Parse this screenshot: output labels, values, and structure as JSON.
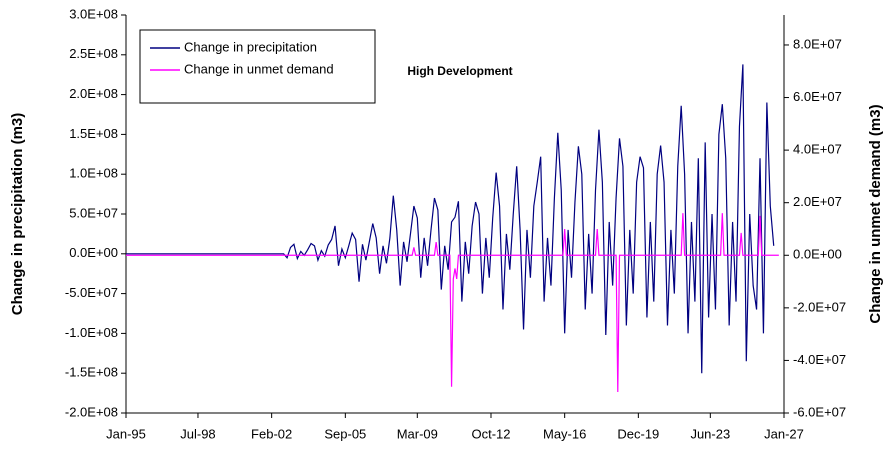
{
  "chart_data": {
    "type": "line",
    "annotation": "High Development",
    "ylabel": "Change in precipitation (m3)",
    "y2label": "Change in unmet demand (m3)",
    "xlim": [
      "1995-01",
      "2027-01"
    ],
    "xticks": [
      {
        "value": "1995-01",
        "label": "Jan-95"
      },
      {
        "value": "1998-07",
        "label": "Jul-98"
      },
      {
        "value": "2002-02",
        "label": "Feb-02"
      },
      {
        "value": "2005-09",
        "label": "Sep-05"
      },
      {
        "value": "2009-03",
        "label": "Mar-09"
      },
      {
        "value": "2012-10",
        "label": "Oct-12"
      },
      {
        "value": "2016-05",
        "label": "May-16"
      },
      {
        "value": "2019-12",
        "label": "Dec-19"
      },
      {
        "value": "2023-06",
        "label": "Jun-23"
      },
      {
        "value": "2027-01",
        "label": "Jan-27"
      }
    ],
    "ylim": [
      -200000000,
      300000000
    ],
    "yticks": [
      {
        "value": 300000000,
        "label": "3.0E+08"
      },
      {
        "value": 250000000,
        "label": "2.5E+08"
      },
      {
        "value": 200000000,
        "label": "2.0E+08"
      },
      {
        "value": 150000000,
        "label": "1.5E+08"
      },
      {
        "value": 100000000,
        "label": "1.0E+08"
      },
      {
        "value": 50000000,
        "label": "5.0E+07"
      },
      {
        "value": 0,
        "label": "0.0E+00"
      },
      {
        "value": -50000000,
        "label": "-5.0E+07"
      },
      {
        "value": -100000000,
        "label": "-1.0E+08"
      },
      {
        "value": -150000000,
        "label": "-1.5E+08"
      },
      {
        "value": -200000000,
        "label": "-2.0E+08"
      }
    ],
    "y2lim": [
      -60000000,
      91400000
    ],
    "y2ticks": [
      {
        "value": 80000000,
        "label": "8.0E+07"
      },
      {
        "value": 60000000,
        "label": "6.0E+07"
      },
      {
        "value": 40000000,
        "label": "4.0E+07"
      },
      {
        "value": 20000000,
        "label": "2.0E+07"
      },
      {
        "value": 0,
        "label": "0.0E+00"
      },
      {
        "value": -20000000,
        "label": "-2.0E+07"
      },
      {
        "value": -40000000,
        "label": "-4.0E+07"
      },
      {
        "value": -60000000,
        "label": "-6.0E+07"
      }
    ],
    "legend": "upper left",
    "series": [
      {
        "name": "Change in precipitation",
        "color": "#000080",
        "axis": "y",
        "x": [
          "1995-01",
          "2002-07",
          "2002-09",
          "2002-11",
          "2003-01",
          "2003-03",
          "2003-05",
          "2003-07",
          "2003-09",
          "2003-11",
          "2004-01",
          "2004-03",
          "2004-05",
          "2004-07",
          "2004-09",
          "2004-11",
          "2005-01",
          "2005-03",
          "2005-05",
          "2005-07",
          "2005-09",
          "2005-11",
          "2006-01",
          "2006-03",
          "2006-05",
          "2006-07",
          "2006-09",
          "2006-11",
          "2007-01",
          "2007-03",
          "2007-05",
          "2007-07",
          "2007-09",
          "2007-11",
          "2008-01",
          "2008-03",
          "2008-05",
          "2008-07",
          "2008-09",
          "2008-11",
          "2009-01",
          "2009-03",
          "2009-05",
          "2009-07",
          "2009-09",
          "2009-11",
          "2010-01",
          "2010-03",
          "2010-05",
          "2010-07",
          "2010-09",
          "2010-11",
          "2011-01",
          "2011-03",
          "2011-05",
          "2011-07",
          "2011-09",
          "2011-11",
          "2012-01",
          "2012-03",
          "2012-05",
          "2012-07",
          "2012-09",
          "2012-11",
          "2013-01",
          "2013-03",
          "2013-05",
          "2013-07",
          "2013-09",
          "2013-11",
          "2014-01",
          "2014-03",
          "2014-05",
          "2014-07",
          "2014-09",
          "2014-11",
          "2015-01",
          "2015-03",
          "2015-05",
          "2015-07",
          "2015-09",
          "2015-11",
          "2016-01",
          "2016-03",
          "2016-05",
          "2016-07",
          "2016-09",
          "2016-11",
          "2017-01",
          "2017-03",
          "2017-05",
          "2017-07",
          "2017-09",
          "2017-11",
          "2018-01",
          "2018-03",
          "2018-05",
          "2018-07",
          "2018-09",
          "2018-11",
          "2019-01",
          "2019-03",
          "2019-05",
          "2019-07",
          "2019-09",
          "2019-11",
          "2020-01",
          "2020-03",
          "2020-05",
          "2020-07",
          "2020-09",
          "2020-11",
          "2021-01",
          "2021-03",
          "2021-05",
          "2021-07",
          "2021-09",
          "2021-11",
          "2022-01",
          "2022-03",
          "2022-05",
          "2022-07",
          "2022-09",
          "2022-11",
          "2023-01",
          "2023-03",
          "2023-05",
          "2023-07",
          "2023-09",
          "2023-11",
          "2024-01",
          "2024-03",
          "2024-05",
          "2024-07",
          "2024-09",
          "2024-11",
          "2025-01",
          "2025-03",
          "2025-05",
          "2025-07",
          "2025-09",
          "2025-11",
          "2026-01",
          "2026-03",
          "2026-05",
          "2026-07"
        ],
        "values": [
          0,
          0,
          0,
          -5000000.0,
          8000000.0,
          12000000.0,
          -6000000.0,
          3000000.0,
          -2000000.0,
          5000000.0,
          13000000.0,
          10000000.0,
          -8000000.0,
          4000000.0,
          -3000000.0,
          11000000.0,
          18000000.0,
          35000000.0,
          -15000000.0,
          6000000.0,
          -5000000.0,
          10000000.0,
          26000000.0,
          18000000.0,
          -35000000.0,
          12000000.0,
          -8000000.0,
          15000000.0,
          38000000.0,
          20000000.0,
          -25000000.0,
          10000000.0,
          -12000000.0,
          20000000.0,
          73000000.0,
          30000000.0,
          -40000000.0,
          15000000.0,
          -10000000.0,
          25000000.0,
          60000000.0,
          45000000.0,
          -30000000.0,
          20000000.0,
          -15000000.0,
          30000000.0,
          70000000.0,
          55000000.0,
          -45000000.0,
          10000000.0,
          -20000000.0,
          40000000.0,
          46000000.0,
          66000000.0,
          -60000000.0,
          15000000.0,
          -25000000.0,
          35000000.0,
          65000000.0,
          50000000.0,
          -50000000.0,
          20000000.0,
          -30000000.0,
          45000000.0,
          102000000.0,
          60000000.0,
          -70000000.0,
          25000000.0,
          -20000000.0,
          50000000.0,
          110000000.0,
          30000000.0,
          -95000000.0,
          30000000.0,
          -30000000.0,
          60000000.0,
          90000000.0,
          122000000.0,
          -60000000.0,
          20000000.0,
          -40000000.0,
          70000000.0,
          152000000.0,
          80000000.0,
          -100000000.0,
          30000000.0,
          -30000000.0,
          65000000.0,
          135000000.0,
          100000000.0,
          -70000000.0,
          25000000.0,
          -50000000.0,
          80000000.0,
          156000000.0,
          90000000.0,
          -102000000.0,
          40000000.0,
          -40000000.0,
          70000000.0,
          145000000.0,
          110000000.0,
          -90000000.0,
          30000000.0,
          -50000000.0,
          90000000.0,
          122000000.0,
          108000000.0,
          -80000000.0,
          40000000.0,
          -60000000.0,
          100000000.0,
          136000000.0,
          90000000.0,
          -90000000.0,
          30000000.0,
          -50000000.0,
          110000000.0,
          186000000.0,
          100000000.0,
          -100000000.0,
          40000000.0,
          -60000000.0,
          120000000.0,
          -150000000.0,
          140000000.0,
          -80000000.0,
          50000000.0,
          -70000000.0,
          150000000.0,
          188000000.0,
          120000000.0,
          -90000000.0,
          40000000.0,
          -60000000.0,
          160000000.0,
          238000000.0,
          -135000000.0,
          50000000.0,
          -40000000.0,
          -70000000.0,
          120000000.0,
          -100000000.0,
          190000000.0,
          60000000.0,
          10000000.0
        ]
      },
      {
        "name": "Change in unmet demand",
        "color": "#ff00ff",
        "axis": "y2",
        "x": [
          "1995-01",
          "2008-12",
          "2009-01",
          "2009-02",
          "2010-01",
          "2010-02",
          "2010-03",
          "2010-10",
          "2010-11",
          "2010-12",
          "2011-01",
          "2011-02",
          "2011-03",
          "2016-04",
          "2016-05",
          "2016-06",
          "2017-11",
          "2017-12",
          "2018-01",
          "2018-11",
          "2018-12",
          "2019-01",
          "2022-01",
          "2022-02",
          "2022-03",
          "2023-12",
          "2024-01",
          "2024-02",
          "2024-11",
          "2024-12",
          "2025-01",
          "2025-10",
          "2025-11",
          "2025-12",
          "2026-10"
        ],
        "values": [
          0,
          0,
          3000000.0,
          0,
          0,
          5000000.0,
          0,
          0,
          -50000000.0,
          -9000000.0,
          -5000000.0,
          -9000000.0,
          0,
          0,
          10000000.0,
          0,
          0,
          10000000.0,
          0,
          0,
          -52000000.0,
          0,
          0,
          16000000.0,
          0,
          0,
          16000000.0,
          0,
          0,
          8500000.0,
          0,
          0,
          15000000.0,
          0,
          0
        ]
      }
    ]
  }
}
